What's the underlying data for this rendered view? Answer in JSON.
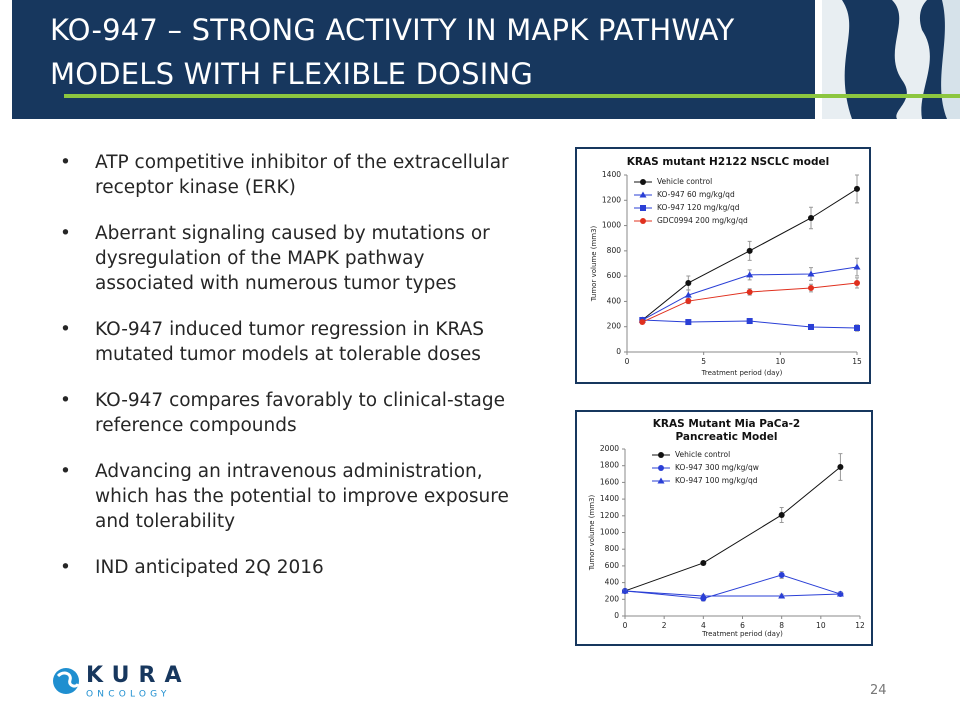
{
  "header": {
    "title": "KO-947 – STRONG ACTIVITY IN MAPK PATHWAY MODELS WITH FLEXIBLE DOSING"
  },
  "bullets": [
    "ATP competitive inhibitor of the extracellular receptor kinase (ERK)",
    "Aberrant signaling caused by mutations or dysregulation of the MAPK pathway associated with numerous tumor types",
    "KO-947 induced tumor regression in KRAS mutated tumor models at tolerable doses",
    "KO-947 compares favorably to clinical-stage reference compounds",
    "Advancing an intravenous administration, which has the potential to improve exposure and tolerability",
    "IND anticipated 2Q 2016"
  ],
  "chart_data": [
    {
      "type": "line",
      "title": "KRAS mutant H2122 NSCLC model",
      "x_label": "Treatment period (day)",
      "y_label": "Tumor volume (mm3)",
      "x": [
        1,
        4,
        8,
        12,
        15
      ],
      "xlim": [
        0,
        15
      ],
      "xticks": [
        0,
        5,
        10,
        15
      ],
      "ylim": [
        0,
        1400
      ],
      "yticks": [
        0,
        200,
        400,
        600,
        800,
        1000,
        1200,
        1400
      ],
      "series": [
        {
          "name": "Vehicle control",
          "color": "#111111",
          "marker": "circle",
          "values": [
            253,
            546,
            800,
            1060,
            1290
          ],
          "errors": [
            10,
            55,
            75,
            85,
            110
          ]
        },
        {
          "name": "KO-947 60 mg/kg/qd",
          "color": "#2a3fd6",
          "marker": "triangle",
          "values": [
            253,
            450,
            610,
            617,
            672
          ],
          "errors": [
            10,
            40,
            40,
            50,
            70
          ]
        },
        {
          "name": "KO-947 120 mg/kg/qd",
          "color": "#2a3fd6",
          "marker": "square",
          "values": [
            253,
            237,
            245,
            198,
            190
          ],
          "errors": [
            10,
            15,
            15,
            20,
            25
          ]
        },
        {
          "name": "GDC0994 200 mg/kg/qd",
          "color": "#e0301e",
          "marker": "circle",
          "values": [
            237,
            403,
            475,
            506,
            546
          ],
          "errors": [
            10,
            20,
            25,
            30,
            40
          ]
        }
      ]
    },
    {
      "type": "line",
      "title": "KRAS Mutant Mia PaCa-2 Pancreatic Model",
      "x_label": "Treatment period (day)",
      "y_label": "Tumor volume (mm3)",
      "x": [
        0,
        4,
        8,
        11
      ],
      "xlim": [
        0,
        12
      ],
      "xticks": [
        0,
        2,
        4,
        6,
        8,
        10,
        12
      ],
      "ylim": [
        0,
        2000
      ],
      "yticks": [
        0,
        200,
        400,
        600,
        800,
        1000,
        1200,
        1400,
        1600,
        1800,
        2000
      ],
      "series": [
        {
          "name": "Vehicle control",
          "color": "#111111",
          "marker": "circle",
          "values": [
            300,
            635,
            1210,
            1785
          ],
          "errors": [
            10,
            20,
            90,
            160
          ]
        },
        {
          "name": "KO-947  300 mg/kg/qw",
          "color": "#2a3fd6",
          "marker": "circle",
          "values": [
            300,
            210,
            491,
            263
          ],
          "errors": [
            10,
            30,
            40,
            20
          ]
        },
        {
          "name": "KO-947  100 mg/kg/qd",
          "color": "#2a3fd6",
          "marker": "triangle",
          "values": [
            300,
            240,
            240,
            263
          ],
          "errors": [
            10,
            15,
            20,
            20
          ]
        }
      ]
    }
  ],
  "footer": {
    "logo": "KURA",
    "logo_sub": "ONCOLOGY",
    "page": "24"
  }
}
